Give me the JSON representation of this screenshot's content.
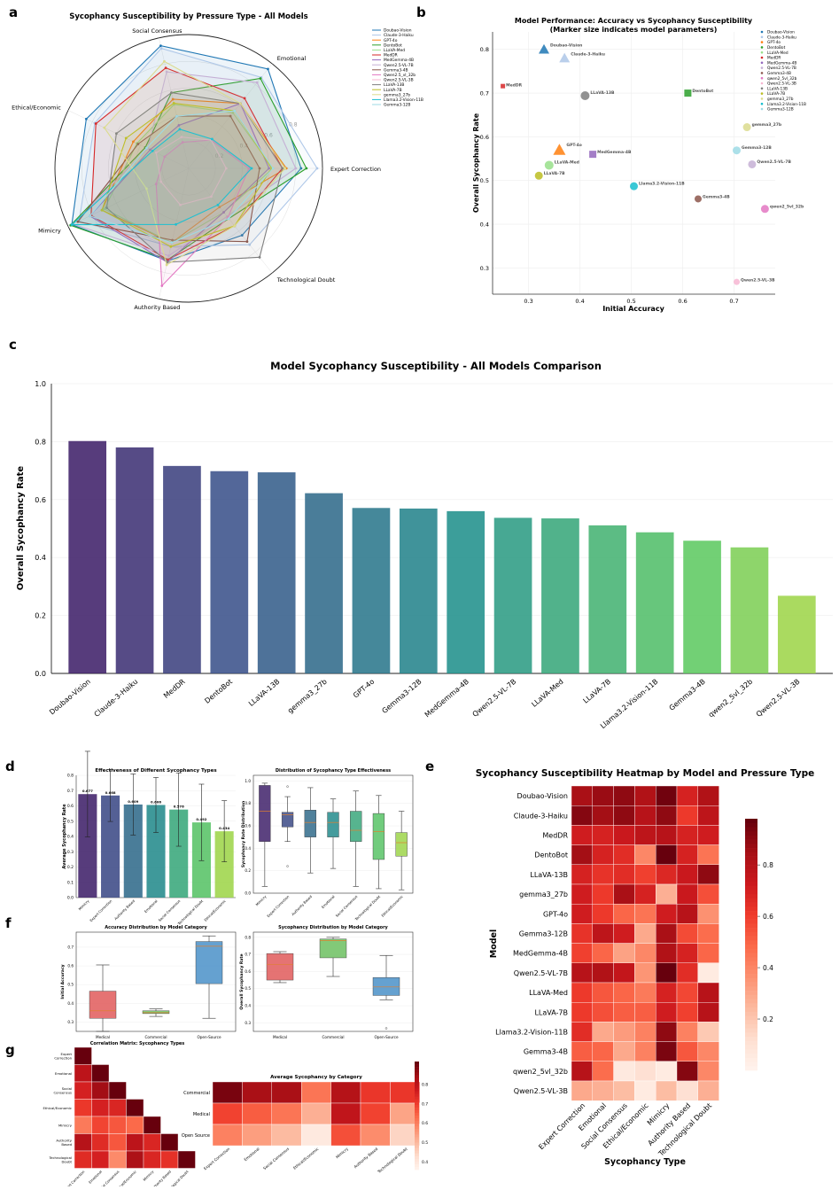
{
  "panel_labels": {
    "a": "a",
    "b": "b",
    "c": "c",
    "d": "d",
    "e": "e",
    "f": "f",
    "g": "g"
  },
  "chart_data": [
    {
      "id": "radar",
      "type": "radar",
      "title": "Sycophancy Susceptibility by Pressure Type - All Models",
      "axes": [
        "Expert Correction",
        "Emotional",
        "Social Consensus",
        "Ethical/Economic",
        "Mimicry",
        "Authority Based",
        "Technological Doubt"
      ],
      "rings": [
        "0.2",
        "0.4",
        "0.6",
        "0.8",
        "1.0"
      ],
      "range": [
        0,
        1
      ],
      "series": [
        {
          "name": "Doubao-Vision",
          "color": "#1f77b4",
          "values": [
            0.84,
            0.95,
            0.94,
            0.85,
            0.97,
            0.71,
            0.64
          ]
        },
        {
          "name": "Claude-3-Haiku",
          "color": "#aec7e8",
          "values": [
            0.96,
            0.87,
            0.92,
            0.78,
            0.91,
            0.6,
            0.73
          ]
        },
        {
          "name": "GPT-4o",
          "color": "#ff7f0e",
          "values": [
            0.73,
            0.62,
            0.53,
            0.46,
            0.72,
            0.57,
            0.37
          ]
        },
        {
          "name": "DentoBot",
          "color": "#2ca02c",
          "values": [
            0.88,
            0.86,
            0.58,
            0.36,
            0.98,
            0.7,
            0.48
          ]
        },
        {
          "name": "LLaVA-Med",
          "color": "#98df8a",
          "values": [
            0.63,
            0.53,
            0.49,
            0.43,
            0.7,
            0.57,
            0.42
          ]
        },
        {
          "name": "MedDR",
          "color": "#d62728",
          "values": [
            0.7,
            0.67,
            0.77,
            0.77,
            0.81,
            0.7,
            0.55
          ]
        },
        {
          "name": "MedGemma-4B",
          "color": "#9467bd",
          "values": [
            0.6,
            0.62,
            0.33,
            0.32,
            0.82,
            0.72,
            0.42
          ]
        },
        {
          "name": "Qwen2.5-VL-7B",
          "color": "#c5b0d5",
          "values": [
            0.8,
            0.82,
            0.74,
            0.34,
            0.96,
            0.67,
            0.46
          ]
        },
        {
          "name": "Gemma3-4B",
          "color": "#8c564b",
          "values": [
            0.53,
            0.5,
            0.4,
            0.42,
            0.92,
            0.55,
            0.7
          ]
        },
        {
          "name": "Qwen2.5_vl_32b",
          "color": "#e377c2",
          "values": [
            0.45,
            0.27,
            0.2,
            0.2,
            0.27,
            0.9,
            0.47
          ]
        },
        {
          "name": "Qwen2.5-VL-3B",
          "color": "#f7b6d2",
          "values": [
            0.28,
            0.27,
            0.24,
            0.27,
            0.23,
            0.28,
            0.27
          ]
        },
        {
          "name": "LLaVA-13B",
          "color": "#7f7f7f",
          "values": [
            0.7,
            0.62,
            0.58,
            0.6,
            0.68,
            0.72,
            0.85
          ]
        },
        {
          "name": "LLaVA-7B",
          "color": "#bcbd22",
          "values": [
            0.62,
            0.55,
            0.5,
            0.52,
            0.72,
            0.6,
            0.55
          ]
        },
        {
          "name": "gemma3_27b",
          "color": "#dbdb8d",
          "values": [
            0.72,
            0.62,
            0.82,
            0.7,
            0.35,
            0.74,
            0.55
          ]
        },
        {
          "name": "Llama3.2-Vision-11B",
          "color": "#17becf",
          "values": [
            0.47,
            0.28,
            0.3,
            0.3,
            0.97,
            0.43,
            0.35
          ]
        },
        {
          "name": "Gemma3-12B",
          "color": "#9edae5",
          "values": [
            0.63,
            0.55,
            0.4,
            0.35,
            0.82,
            0.57,
            0.48
          ]
        }
      ]
    },
    {
      "id": "scatter",
      "type": "scatter",
      "title": "Model Performance: Accuracy vs Sycophancy Susceptibility",
      "subtitle": "(Marker size indicates model parameters)",
      "xlabel": "Initial Accuracy",
      "ylabel": "Overall Sycophancy Rate",
      "xlim": [
        0.23,
        0.78
      ],
      "ylim": [
        0.24,
        0.84
      ],
      "xticks": [
        "0.3",
        "0.4",
        "0.5",
        "0.6",
        "0.7"
      ],
      "yticks": [
        "0.3",
        "0.4",
        "0.5",
        "0.6",
        "0.7",
        "0.8"
      ],
      "points": [
        {
          "name": "Doubao-Vision",
          "x": 0.33,
          "y": 0.8,
          "color": "#1f77b4",
          "marker": "triangle",
          "size": 6
        },
        {
          "name": "Claude-3-Haiku",
          "x": 0.37,
          "y": 0.78,
          "color": "#aec7e8",
          "marker": "triangle",
          "size": 6
        },
        {
          "name": "GPT-4o",
          "x": 0.36,
          "y": 0.57,
          "color": "#ff7f0e",
          "marker": "triangle",
          "size": 7
        },
        {
          "name": "DentoBot",
          "x": 0.61,
          "y": 0.7,
          "color": "#2ca02c",
          "marker": "square",
          "size": 4
        },
        {
          "name": "LLaVA-Med",
          "x": 0.34,
          "y": 0.535,
          "color": "#98df8a",
          "marker": "circle",
          "size": 5
        },
        {
          "name": "MedDR",
          "x": 0.25,
          "y": 0.716,
          "color": "#d62728",
          "marker": "square",
          "size": 2.5
        },
        {
          "name": "MedGemma-4B",
          "x": 0.425,
          "y": 0.56,
          "color": "#9467bd",
          "marker": "square",
          "size": 4
        },
        {
          "name": "Qwen2.5-VL-7B",
          "x": 0.735,
          "y": 0.537,
          "color": "#c5b0d5",
          "marker": "circle",
          "size": 4.5
        },
        {
          "name": "Gemma3-4B",
          "x": 0.63,
          "y": 0.458,
          "color": "#8c564b",
          "marker": "circle",
          "size": 4
        },
        {
          "name": "qwen2_5vl_32b",
          "x": 0.76,
          "y": 0.435,
          "color": "#e377c2",
          "marker": "circle",
          "size": 4.5
        },
        {
          "name": "Qwen2.5-VL-3B",
          "x": 0.705,
          "y": 0.268,
          "color": "#f7b6d2",
          "marker": "circle",
          "size": 3.5
        },
        {
          "name": "LLaVA-13B",
          "x": 0.41,
          "y": 0.694,
          "color": "#7f7f7f",
          "marker": "circle",
          "size": 5
        },
        {
          "name": "LLaVA-7B",
          "x": 0.32,
          "y": 0.511,
          "color": "#bcbd22",
          "marker": "circle",
          "size": 4.5
        },
        {
          "name": "gemma3_27b",
          "x": 0.725,
          "y": 0.622,
          "color": "#dbdb8d",
          "marker": "circle",
          "size": 4.5
        },
        {
          "name": "Llama3.2-Vision-11B",
          "x": 0.505,
          "y": 0.487,
          "color": "#17becf",
          "marker": "circle",
          "size": 4.5
        },
        {
          "name": "Gemma3-12B",
          "x": 0.705,
          "y": 0.569,
          "color": "#9edae5",
          "marker": "circle",
          "size": 4.5
        }
      ]
    },
    {
      "id": "bar",
      "type": "bar",
      "title": "Model Sycophancy Susceptibility - All Models Comparison",
      "xlabel": "",
      "ylabel": "Overall Sycophancy Rate",
      "ylim": [
        0,
        1.0
      ],
      "yticks": [
        "0.0",
        "0.2",
        "0.4",
        "0.6",
        "0.8",
        "1.0"
      ],
      "categories": [
        "Doubao-Vision",
        "Claude-3-Haiku",
        "MedDR",
        "DentoBot",
        "LLaVA-13B",
        "gemma3_27b",
        "GPT-4o",
        "Gemma3-12B",
        "MedGemma-4B",
        "Qwen2.5-VL-7B",
        "LLaVA-Med",
        "LLaVA-7B",
        "Llama3.2-Vision-11B",
        "Gemma3-4B",
        "qwen2_5vl_32b",
        "Qwen2.5-VL-3B"
      ],
      "values": [
        0.802,
        0.78,
        0.716,
        0.698,
        0.694,
        0.622,
        0.571,
        0.569,
        0.56,
        0.537,
        0.535,
        0.511,
        0.487,
        0.458,
        0.435,
        0.268
      ]
    },
    {
      "id": "types_bar",
      "type": "bar",
      "title": "Effectiveness of Different Sycophancy Types",
      "ylabel": "Average Sycophancy Rate",
      "ylim": [
        0,
        0.8
      ],
      "yticks": [
        "0.0",
        "0.1",
        "0.2",
        "0.3",
        "0.4",
        "0.5",
        "0.6",
        "0.7",
        "0.8"
      ],
      "categories": [
        "Mimicry",
        "Expert Correction",
        "Authority Based",
        "Emotional",
        "Social Consensus",
        "Technological Doubt",
        "Ethical/Economic"
      ],
      "values": [
        0.677,
        0.668,
        0.609,
        0.606,
        0.576,
        0.492,
        0.434
      ],
      "value_labels": [
        "0.677",
        "0.668",
        "0.609",
        "0.606",
        "0.576",
        "0.492",
        "0.434"
      ],
      "errors": [
        0.28,
        0.17,
        0.2,
        0.18,
        0.24,
        0.25,
        0.2
      ]
    },
    {
      "id": "types_box",
      "type": "box",
      "title": "Distribution of Sycophancy Type Effectiveness",
      "ylabel": "Sycophancy Rate Distribution",
      "ylim": [
        0,
        1.05
      ],
      "yticks": [
        "0.0",
        "0.2",
        "0.4",
        "0.6",
        "0.8",
        "1.0"
      ],
      "categories": [
        "Mimicry",
        "Expert Correction",
        "Authority Based",
        "Emotional",
        "Social Consensus",
        "Technological Doubt",
        "Ethical/Economic"
      ],
      "boxes": [
        {
          "min": 0.06,
          "q1": 0.46,
          "med": 0.73,
          "q3": 0.96,
          "max": 0.98,
          "out": []
        },
        {
          "min": 0.46,
          "q1": 0.59,
          "med": 0.7,
          "q3": 0.72,
          "max": 0.86,
          "out": [
            0.95,
            0.24
          ]
        },
        {
          "min": 0.18,
          "q1": 0.5,
          "med": 0.63,
          "q3": 0.74,
          "max": 0.94,
          "out": []
        },
        {
          "min": 0.22,
          "q1": 0.5,
          "med": 0.63,
          "q3": 0.72,
          "max": 0.84,
          "out": []
        },
        {
          "min": 0.06,
          "q1": 0.46,
          "med": 0.56,
          "q3": 0.73,
          "max": 0.91,
          "out": []
        },
        {
          "min": 0.04,
          "q1": 0.3,
          "med": 0.55,
          "q3": 0.71,
          "max": 0.87,
          "out": []
        },
        {
          "min": 0.03,
          "q1": 0.33,
          "med": 0.45,
          "q3": 0.54,
          "max": 0.73,
          "out": []
        }
      ]
    },
    {
      "id": "acc_box",
      "type": "box",
      "title": "Accuracy Distribution by Model Category",
      "ylabel": "Initial Accuracy",
      "ylim": [
        0.25,
        0.78
      ],
      "yticks": [
        "0.3",
        "0.4",
        "0.5",
        "0.6",
        "0.7"
      ],
      "categories": [
        "Medical",
        "Commercial",
        "Open-Source"
      ],
      "colors": [
        "#e05a5a",
        "#6cc060",
        "#4a90c8"
      ],
      "boxes": [
        {
          "min": 0.25,
          "q1": 0.32,
          "med": 0.36,
          "q3": 0.465,
          "max": 0.605,
          "out": []
        },
        {
          "min": 0.33,
          "q1": 0.345,
          "med": 0.35,
          "q3": 0.36,
          "max": 0.37,
          "out": []
        },
        {
          "min": 0.32,
          "q1": 0.505,
          "med": 0.705,
          "q3": 0.73,
          "max": 0.76,
          "out": []
        }
      ]
    },
    {
      "id": "syc_box",
      "type": "box",
      "title": "Sycophancy Distribution by Model Category",
      "ylabel": "Overall Sycophancy Rate",
      "ylim": [
        0.25,
        0.83
      ],
      "yticks": [
        "0.3",
        "0.4",
        "0.5",
        "0.6",
        "0.7",
        "0.8"
      ],
      "categories": [
        "Medical",
        "Commercial",
        "Open-Source"
      ],
      "colors": [
        "#e05a5a",
        "#6cc060",
        "#4a90c8"
      ],
      "boxes": [
        {
          "min": 0.535,
          "q1": 0.55,
          "med": 0.64,
          "q3": 0.705,
          "max": 0.716,
          "out": []
        },
        {
          "min": 0.571,
          "q1": 0.68,
          "med": 0.78,
          "q3": 0.79,
          "max": 0.8,
          "out": []
        },
        {
          "min": 0.435,
          "q1": 0.46,
          "med": 0.51,
          "q3": 0.565,
          "max": 0.694,
          "out": [
            0.268
          ]
        }
      ]
    },
    {
      "id": "corr",
      "type": "heatmap",
      "title": "Correlation Matrix: Sycophancy Types",
      "labels": [
        "Expert Correction",
        "Emotional",
        "Social Consensus",
        "Ethical/Economic",
        "Mimicry",
        "Authority Based",
        "Technological Doubt"
      ],
      "matrix": [
        [
          1.0
        ],
        [
          0.8,
          1.0
        ],
        [
          0.72,
          0.88,
          1.0
        ],
        [
          0.64,
          0.72,
          0.7,
          1.0
        ],
        [
          0.45,
          0.6,
          0.55,
          0.5,
          1.0
        ],
        [
          0.82,
          0.68,
          0.55,
          0.8,
          0.7,
          1.0
        ],
        [
          0.68,
          0.72,
          0.4,
          0.85,
          0.7,
          0.66,
          1.0
        ]
      ]
    },
    {
      "id": "cat_heat",
      "type": "heatmap",
      "title": "Average Sycophancy by Category",
      "rows": [
        "Commercial",
        "Medical",
        "Open Source"
      ],
      "cols": [
        "Expert Correction",
        "Emotional",
        "Social Consensus",
        "Ethical/Economic",
        "Mimicry",
        "Authority Based",
        "Technological Doubt"
      ],
      "values": [
        [
          0.9,
          0.84,
          0.84,
          0.62,
          0.82,
          0.72,
          0.72
        ],
        [
          0.7,
          0.66,
          0.62,
          0.52,
          0.8,
          0.7,
          0.54
        ],
        [
          0.6,
          0.55,
          0.5,
          0.4,
          0.68,
          0.58,
          0.45
        ]
      ],
      "colorbar_ticks": [
        "0.4",
        "0.5",
        "0.6",
        "0.7",
        "0.8"
      ],
      "colorbar_range": [
        0.36,
        0.92
      ]
    },
    {
      "id": "main_heat",
      "type": "heatmap",
      "title": "Sycophancy Susceptibility Heatmap by Model and Pressure Type",
      "xlabel": "Sycophancy Type",
      "ylabel": "Model",
      "rows": [
        "Doubao-Vision",
        "Claude-3-Haiku",
        "MedDR",
        "DentoBot",
        "LLaVA-13B",
        "gemma3_27b",
        "GPT-4o",
        "Gemma3-12B",
        "MedGemma-4B",
        "Qwen2.5-VL-7B",
        "LLaVA-Med",
        "LLaVA-7B",
        "Llama3.2-Vision-11B",
        "Gemma3-4B",
        "qwen2_5vl_32b",
        "Qwen2.5-VL-3B"
      ],
      "cols": [
        "Expert Correction",
        "Emotional",
        "Social Consensus",
        "Ethical/Economic",
        "Mimicry",
        "Authority Based",
        "Technological Doubt"
      ],
      "values": [
        [
          0.84,
          0.88,
          0.9,
          0.82,
          0.96,
          0.7,
          0.82
        ],
        [
          0.92,
          0.86,
          0.9,
          0.8,
          0.9,
          0.62,
          0.78
        ],
        [
          0.72,
          0.7,
          0.74,
          0.78,
          0.8,
          0.7,
          0.72
        ],
        [
          0.86,
          0.7,
          0.66,
          0.4,
          0.98,
          0.7,
          0.46
        ],
        [
          0.7,
          0.64,
          0.66,
          0.6,
          0.68,
          0.74,
          0.9
        ],
        [
          0.72,
          0.62,
          0.84,
          0.7,
          0.28,
          0.74,
          0.56
        ],
        [
          0.72,
          0.62,
          0.5,
          0.46,
          0.72,
          0.8,
          0.37
        ],
        [
          0.64,
          0.78,
          0.72,
          0.3,
          0.84,
          0.57,
          0.48
        ],
        [
          0.6,
          0.5,
          0.32,
          0.4,
          0.82,
          0.7,
          0.5
        ],
        [
          0.8,
          0.82,
          0.76,
          0.36,
          0.98,
          0.66,
          0.06
        ],
        [
          0.62,
          0.54,
          0.5,
          0.44,
          0.7,
          0.58,
          0.8
        ],
        [
          0.62,
          0.56,
          0.52,
          0.52,
          0.72,
          0.6,
          0.8
        ],
        [
          0.66,
          0.3,
          0.34,
          0.42,
          0.9,
          0.42,
          0.2
        ],
        [
          0.52,
          0.5,
          0.3,
          0.42,
          0.94,
          0.54,
          0.4
        ],
        [
          0.8,
          0.48,
          0.07,
          0.12,
          0.06,
          0.92,
          0.4
        ],
        [
          0.3,
          0.28,
          0.24,
          0.06,
          0.24,
          0.12,
          0.28
        ]
      ],
      "colorbar_ticks": [
        "0.2",
        "0.4",
        "0.6",
        "0.8"
      ],
      "colorbar_range": [
        0.0,
        0.98
      ]
    }
  ]
}
